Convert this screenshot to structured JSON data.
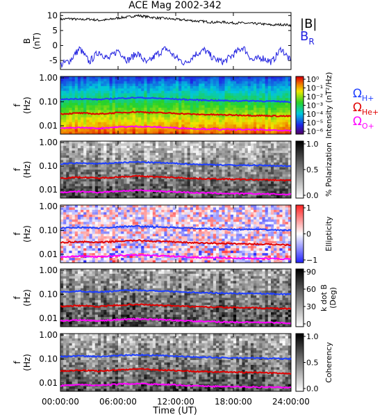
{
  "title": "ACE Mag 2002-342",
  "xaxis": {
    "label": "Time (UT)",
    "ticks": [
      "00:00:00",
      "06:00:00",
      "12:00:00",
      "18:00:00",
      "24:00:00"
    ],
    "range_hours": [
      0,
      24
    ]
  },
  "colors": {
    "B_total": "#000000",
    "B_R": "#1f1fe0",
    "H_plus": "#1f3fff",
    "He_plus": "#e00000",
    "O_plus": "#ff00ff"
  },
  "chart_data": [
    {
      "id": "b_field",
      "type": "line",
      "ylabel": "B (nT)",
      "ylim": [
        -8,
        11
      ],
      "yticks": [
        "10",
        "5",
        "0",
        "-5"
      ],
      "legend": [
        "|B|",
        "B_R"
      ],
      "series": [
        {
          "name": "|B|",
          "color": "#000000",
          "x": [
            0,
            1,
            2,
            3,
            4,
            5,
            6,
            7,
            8,
            9,
            10,
            11,
            12,
            13,
            14,
            15,
            16,
            17,
            18,
            19,
            20,
            21,
            22,
            23,
            24
          ],
          "values": [
            8.7,
            9.0,
            8.6,
            8.8,
            8.4,
            8.6,
            9.2,
            9.5,
            10.0,
            9.6,
            9.2,
            9.0,
            8.7,
            8.5,
            8.2,
            8.0,
            7.7,
            7.8,
            7.5,
            7.5,
            7.3,
            7.2,
            6.8,
            7.0,
            6.8
          ]
        },
        {
          "name": "B_R",
          "color": "#1f1fe0",
          "x": [
            0,
            1,
            2,
            3,
            4,
            5,
            6,
            7,
            8,
            9,
            10,
            11,
            12,
            13,
            14,
            15,
            16,
            17,
            18,
            19,
            20,
            21,
            22,
            23,
            24
          ],
          "values": [
            -6.5,
            -5.0,
            -1.0,
            -5.5,
            -2.0,
            -4.5,
            -1.5,
            -5.0,
            -2.5,
            -6.0,
            -3.0,
            -1.0,
            -4.0,
            -6.0,
            -3.0,
            -1.5,
            -4.5,
            -5.5,
            -3.0,
            -0.5,
            -5.0,
            -4.0,
            -5.5,
            -1.0,
            -5.5
          ]
        }
      ],
      "legend_labels": {
        "total": "|B|",
        "radial_main": "B",
        "radial_sub": "R"
      }
    },
    {
      "id": "intensity",
      "type": "heatmap",
      "ylabel_main": "f",
      "ylabel_unit": "(Hz)",
      "yticks": [
        "1.00",
        "0.10",
        "0.01"
      ],
      "colorbar_label": "Intensity (nT²/Hz)",
      "colorbar_ticks": [
        "10⁰",
        "10⁻¹",
        "10⁻²",
        "10⁻³",
        "10⁻⁴",
        "10⁻⁵",
        "10⁻⁶"
      ],
      "legend": [
        "Ω_H+",
        "Ω_He+",
        "Ω_O+"
      ]
    },
    {
      "id": "polarization",
      "type": "heatmap",
      "ylabel_main": "f",
      "ylabel_unit": "(Hz)",
      "yticks": [
        "1.00",
        "0.10",
        "0.01"
      ],
      "colorbar_label": "% Polarization",
      "colorbar_ticks": [
        "1.0",
        "0.5",
        "0.0"
      ]
    },
    {
      "id": "ellipticity",
      "type": "heatmap",
      "ylabel_main": "f",
      "ylabel_unit": "(Hz)",
      "yticks": [
        "1.00",
        "0.10",
        "0.01"
      ],
      "colorbar_label": "Ellipticity",
      "colorbar_ticks": [
        "1",
        "0",
        "−1"
      ]
    },
    {
      "id": "kdotb",
      "type": "heatmap",
      "ylabel_main": "f",
      "ylabel_unit": "(Hz)",
      "yticks": [
        "1.00",
        "0.10",
        "0.01"
      ],
      "colorbar_label": "k dot B (Deg)",
      "colorbar_label_line1": "k dot B",
      "colorbar_label_line2": "(Deg)",
      "colorbar_ticks": [
        "90",
        "60",
        "30",
        "0"
      ]
    },
    {
      "id": "coherency",
      "type": "heatmap",
      "ylabel_main": "f",
      "ylabel_unit": "(Hz)",
      "yticks": [
        "1.00",
        "0.10",
        "0.01"
      ],
      "colorbar_label": "Coherency",
      "colorbar_ticks": [
        "1.0",
        "0.5",
        "0.0"
      ]
    }
  ],
  "gyrofrequencies": {
    "x": [
      0,
      2,
      4,
      6,
      8,
      10,
      12,
      14,
      16,
      18,
      20,
      22,
      24
    ],
    "H_plus": [
      0.125,
      0.135,
      0.125,
      0.14,
      0.15,
      0.14,
      0.13,
      0.12,
      0.115,
      0.11,
      0.11,
      0.105,
      0.1
    ],
    "He_plus": [
      0.031,
      0.034,
      0.031,
      0.035,
      0.038,
      0.035,
      0.033,
      0.03,
      0.029,
      0.028,
      0.027,
      0.026,
      0.025
    ],
    "O_plus": [
      0.0078,
      0.0084,
      0.0078,
      0.0088,
      0.0094,
      0.0088,
      0.0082,
      0.0075,
      0.0072,
      0.0069,
      0.0068,
      0.0066,
      0.0063
    ]
  }
}
